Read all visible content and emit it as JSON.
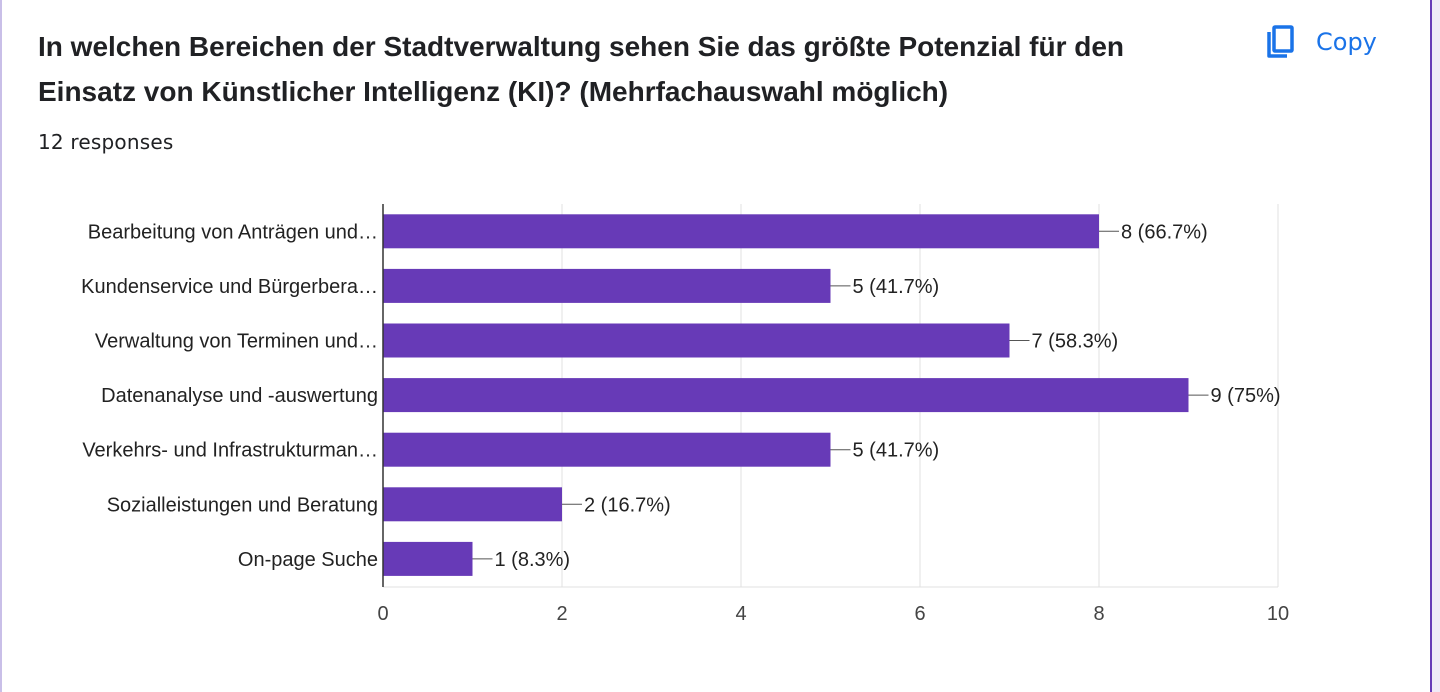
{
  "question": {
    "title": "In welchen Bereichen der Stadtverwaltung sehen Sie das größte Potenzial für den Einsatz von Künstlicher Intelligenz (KI)? (Mehrfachauswahl möglich)",
    "responses": "12 responses"
  },
  "toolbar": {
    "copy_label": "Copy",
    "copy_icon": "copy-icon"
  },
  "colors": {
    "bar": "#673ab7",
    "accent": "#1a73e8",
    "grid": "#e0e0e0",
    "axis": "#333333"
  },
  "chart_data": {
    "type": "bar",
    "orientation": "horizontal",
    "categories": [
      "Bearbeitung von Anträgen und…",
      "Kundenservice und Bürgerbera…",
      "Verwaltung von Terminen und…",
      "Datenanalyse und -auswertung",
      "Verkehrs- und Infrastrukturman…",
      "Sozialleistungen und Beratung",
      "On-page Suche"
    ],
    "values": [
      8,
      5,
      7,
      9,
      5,
      2,
      1
    ],
    "data_labels": [
      "8 (66.7%)",
      "5 (41.7%)",
      "7 (58.3%)",
      "9 (75%)",
      "5 (41.7%)",
      "2 (16.7%)",
      "1 (8.3%)"
    ],
    "xlim": [
      0,
      10
    ],
    "xticks": [
      "0",
      "2",
      "4",
      "6",
      "8",
      "10"
    ],
    "xtick_values": [
      0,
      2,
      4,
      6,
      8,
      10
    ],
    "grid": true
  }
}
